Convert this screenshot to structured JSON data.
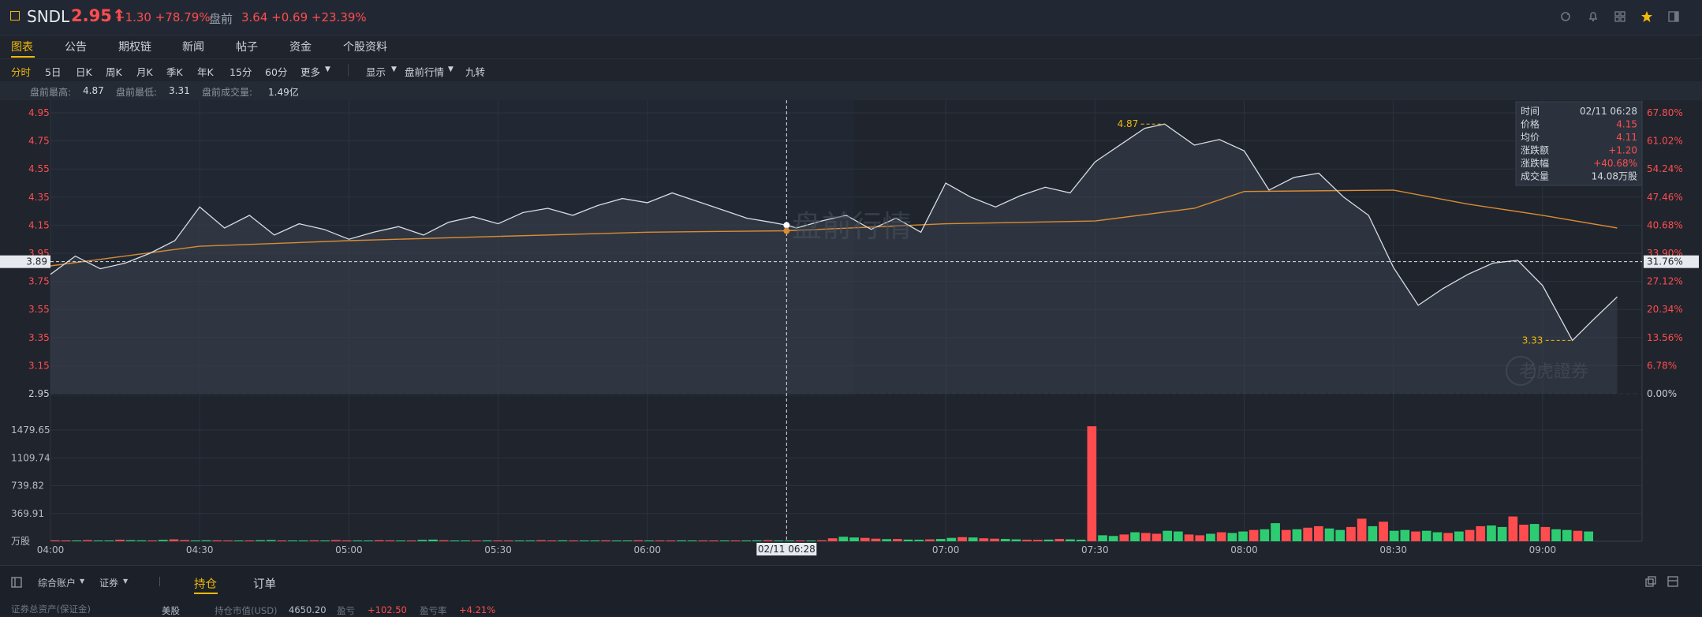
{
  "header": {
    "symbol": "SNDL",
    "price": "2.95↑",
    "change": "+1.30 +78.79%",
    "premarket_label": "盘前",
    "premarket_value": "3.64 +0.69 +23.39%",
    "icons": [
      "refresh-icon",
      "bell-icon",
      "grid-icon",
      "star-icon",
      "sidebar-icon"
    ],
    "star_color": "#f0b90b"
  },
  "tabs": [
    "图表",
    "公告",
    "期权链",
    "新闻",
    "帖子",
    "资金",
    "个股资料"
  ],
  "periods": [
    "分时",
    "5日",
    "日K",
    "周K",
    "月K",
    "季K",
    "年K",
    "15分",
    "60分",
    "更多",
    "显示",
    "盘前行情",
    "九转"
  ],
  "premarket_stats": {
    "high_label": "盘前最高:",
    "high_value": "4.87",
    "low_label": "盘前最低:",
    "low_value": "3.31",
    "vol_label": "盘前成交量:",
    "vol_value": "1.49亿"
  },
  "watermarks": {
    "center": "盘前行情",
    "brand": "老虎證券"
  },
  "tooltip": {
    "rows": [
      {
        "label": "时间",
        "value": "02/11 06:28"
      },
      {
        "label": "价格",
        "value": "4.15"
      },
      {
        "label": "均价",
        "value": "4.11"
      },
      {
        "label": "涨跌额",
        "value": "+1.20"
      },
      {
        "label": "涨跌幅",
        "value": "+40.68%"
      },
      {
        "label": "成交量",
        "value": "14.08万股"
      }
    ]
  },
  "crosshair": {
    "time_label": "02/11 06:28",
    "price_label": "3.89",
    "pct_label": "31.76%"
  },
  "colors": {
    "up": "#ff4d4f",
    "down": "#2ecc71",
    "avg": "#d98c34",
    "price": "#d8dde3",
    "accent": "#f0b90b"
  },
  "chart_data": {
    "type": "line",
    "x_ticks": [
      "04:00",
      "04:30",
      "05:00",
      "05:30",
      "06:00",
      "06:28",
      "07:00",
      "07:30",
      "08:00",
      "08:30",
      "09:00"
    ],
    "y_price_ticks": [
      "4.95",
      "4.75",
      "4.55",
      "4.35",
      "4.15",
      "3.95",
      "3.75",
      "3.55",
      "3.35",
      "3.15",
      "2.95"
    ],
    "y_pct_ticks": [
      "67.80%",
      "61.02%",
      "54.24%",
      "47.46%",
      "40.68%",
      "33.90%",
      "27.12%",
      "20.34%",
      "13.56%",
      "6.78%",
      "0.00%"
    ],
    "ylim": [
      2.95,
      4.95
    ],
    "high_marker": {
      "label": "4.87",
      "time": "07:44",
      "value": 4.87
    },
    "low_marker": {
      "label": "3.33",
      "time": "09:06",
      "value": 3.33
    },
    "series": [
      {
        "name": "价格",
        "points": [
          [
            "04:00",
            3.8
          ],
          [
            "04:05",
            3.93
          ],
          [
            "04:10",
            3.84
          ],
          [
            "04:15",
            3.88
          ],
          [
            "04:20",
            3.95
          ],
          [
            "04:25",
            4.04
          ],
          [
            "04:30",
            4.28
          ],
          [
            "04:35",
            4.13
          ],
          [
            "04:40",
            4.22
          ],
          [
            "04:45",
            4.08
          ],
          [
            "04:50",
            4.16
          ],
          [
            "04:55",
            4.12
          ],
          [
            "05:00",
            4.05
          ],
          [
            "05:05",
            4.1
          ],
          [
            "05:10",
            4.14
          ],
          [
            "05:15",
            4.08
          ],
          [
            "05:20",
            4.17
          ],
          [
            "05:25",
            4.21
          ],
          [
            "05:30",
            4.16
          ],
          [
            "05:35",
            4.24
          ],
          [
            "05:40",
            4.27
          ],
          [
            "05:45",
            4.22
          ],
          [
            "05:50",
            4.29
          ],
          [
            "05:55",
            4.34
          ],
          [
            "06:00",
            4.31
          ],
          [
            "06:05",
            4.38
          ],
          [
            "06:10",
            4.32
          ],
          [
            "06:15",
            4.26
          ],
          [
            "06:20",
            4.2
          ],
          [
            "06:25",
            4.17
          ],
          [
            "06:28",
            4.15
          ],
          [
            "06:30",
            4.13
          ],
          [
            "06:35",
            4.18
          ],
          [
            "06:40",
            4.22
          ],
          [
            "06:45",
            4.12
          ],
          [
            "06:50",
            4.2
          ],
          [
            "06:55",
            4.1
          ],
          [
            "07:00",
            4.45
          ],
          [
            "07:05",
            4.35
          ],
          [
            "07:10",
            4.28
          ],
          [
            "07:15",
            4.36
          ],
          [
            "07:20",
            4.42
          ],
          [
            "07:25",
            4.38
          ],
          [
            "07:30",
            4.6
          ],
          [
            "07:35",
            4.72
          ],
          [
            "07:40",
            4.84
          ],
          [
            "07:44",
            4.87
          ],
          [
            "07:50",
            4.72
          ],
          [
            "07:55",
            4.76
          ],
          [
            "08:00",
            4.68
          ],
          [
            "08:05",
            4.4
          ],
          [
            "08:10",
            4.49
          ],
          [
            "08:15",
            4.52
          ],
          [
            "08:20",
            4.35
          ],
          [
            "08:25",
            4.22
          ],
          [
            "08:30",
            3.85
          ],
          [
            "08:35",
            3.58
          ],
          [
            "08:40",
            3.7
          ],
          [
            "08:45",
            3.8
          ],
          [
            "08:50",
            3.88
          ],
          [
            "08:55",
            3.9
          ],
          [
            "09:00",
            3.72
          ],
          [
            "09:06",
            3.33
          ],
          [
            "09:10",
            3.47
          ],
          [
            "09:15",
            3.64
          ]
        ]
      },
      {
        "name": "均价",
        "points": [
          [
            "04:00",
            3.86
          ],
          [
            "04:30",
            4.0
          ],
          [
            "05:00",
            4.04
          ],
          [
            "05:30",
            4.07
          ],
          [
            "06:00",
            4.1
          ],
          [
            "06:28",
            4.11
          ],
          [
            "07:00",
            4.16
          ],
          [
            "07:30",
            4.18
          ],
          [
            "07:50",
            4.27
          ],
          [
            "08:00",
            4.39
          ],
          [
            "08:30",
            4.4
          ],
          [
            "08:45",
            4.3
          ],
          [
            "09:00",
            4.22
          ],
          [
            "09:15",
            4.13
          ]
        ]
      }
    ],
    "volume_ticks": [
      "1479.65",
      "1109.74",
      "739.82",
      "369.91",
      "万股"
    ],
    "volume_ylim": [
      0,
      1479.65
    ],
    "volume": [
      12,
      10,
      8,
      15,
      9,
      11,
      20,
      14,
      12,
      9,
      18,
      25,
      15,
      10,
      13,
      12,
      9,
      8,
      10,
      14,
      16,
      11,
      9,
      8,
      12,
      10,
      15,
      9,
      8,
      10,
      14,
      12,
      9,
      11,
      18,
      22,
      13,
      10,
      9,
      8,
      12,
      10,
      8,
      9,
      11,
      14,
      10,
      12,
      9,
      8,
      10,
      12,
      11,
      9,
      13,
      10,
      8,
      9,
      12,
      10,
      8,
      9,
      10,
      11,
      9,
      12,
      14,
      10,
      8,
      9,
      11,
      13,
      40,
      60,
      50,
      45,
      35,
      28,
      30,
      22,
      20,
      25,
      30,
      45,
      55,
      50,
      40,
      35,
      30,
      25,
      20,
      18,
      22,
      30,
      25,
      20,
      1530,
      80,
      70,
      90,
      120,
      110,
      100,
      140,
      130,
      90,
      80,
      100,
      120,
      110,
      130,
      150,
      160,
      240,
      150,
      160,
      180,
      200,
      170,
      150,
      190,
      300,
      200,
      260,
      140,
      150,
      130,
      140,
      120,
      110,
      130,
      150,
      200,
      210,
      190,
      330,
      220,
      230,
      190,
      160,
      150,
      140,
      130
    ]
  },
  "bottom": {
    "account": "综合账户",
    "category": "证券",
    "tab_holdings": "持仓",
    "tab_orders": "订单",
    "asset_label": "证券总资产(保证金)",
    "currency": "美股",
    "mv_label": "持仓市值(USD)",
    "mv_value": "4650.20",
    "pnl_label": "盈亏",
    "pnl_value": "+102.50",
    "pnlpct_label": "盈亏率",
    "pnlpct_value": "+4.21%"
  }
}
